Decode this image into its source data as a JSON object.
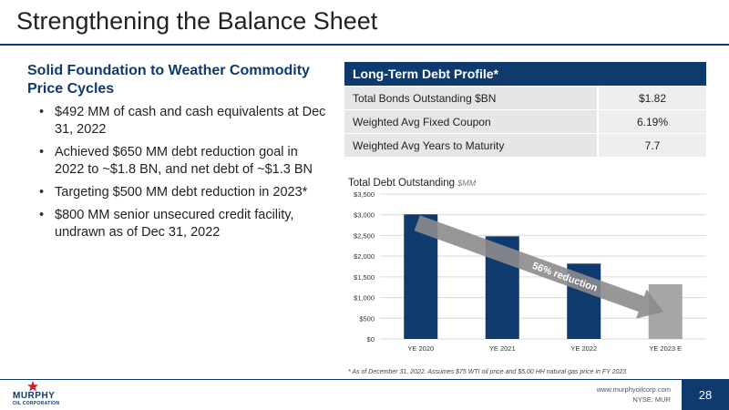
{
  "slide": {
    "title": "Strengthening the Balance Sheet",
    "page_number": "28"
  },
  "left": {
    "heading": "Solid Foundation to Weather Commodity Price Cycles",
    "bullets": [
      "$492 MM of cash and cash equivalents at Dec 31, 2022",
      "Achieved $650 MM debt reduction goal in 2022 to ~$1.8 BN, and net debt of ~$1.3 BN",
      "Targeting $500 MM debt reduction in 2023*",
      "$800 MM senior unsecured credit facility, undrawn as of Dec 31, 2022"
    ]
  },
  "debt_table": {
    "header": "Long-Term Debt Profile*",
    "rows": [
      {
        "label": "Total Bonds Outstanding $BN",
        "value": "$1.82"
      },
      {
        "label": "Weighted Avg Fixed Coupon",
        "value": "6.19%"
      },
      {
        "label": "Weighted Avg Years to Maturity",
        "value": "7.7"
      }
    ]
  },
  "chart_data": {
    "type": "bar",
    "title": "Total Debt Outstanding",
    "title_unit": "$MM",
    "categories": [
      "YE 2020",
      "YE 2021",
      "YE 2022",
      "YE 2023 E"
    ],
    "values": [
      3010,
      2480,
      1820,
      1320
    ],
    "bar_colors": [
      "#0e3a6e",
      "#0e3a6e",
      "#0e3a6e",
      "#a6a6a6"
    ],
    "ylim": [
      0,
      3500
    ],
    "yticks": [
      0,
      500,
      1000,
      1500,
      2000,
      2500,
      3000,
      3500
    ],
    "ytick_labels": [
      "$0",
      "$500",
      "$1,000",
      "$1,500",
      "$2,000",
      "$2,500",
      "$3,000",
      "$3,500"
    ],
    "grid": true,
    "annotation": "56% reduction"
  },
  "footnote": "* As of December 31, 2022. Assumes $75 WTI oil price and $5.00 HH natural gas price in FY 2023",
  "footer": {
    "logo_line1": "MURPHY",
    "logo_line2": "OIL CORPORATION",
    "website": "www.murphyoilcorp.com",
    "ticker": "NYSE: MUR"
  },
  "colors": {
    "brand_navy": "#0e3a6e",
    "forecast_gray": "#a6a6a6",
    "arrow_gray": "#8c8c8c",
    "logo_red": "#d0202e"
  }
}
